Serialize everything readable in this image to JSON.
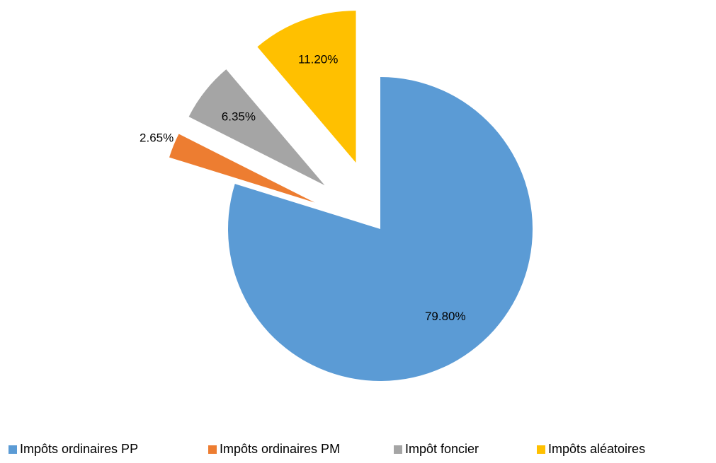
{
  "chart_data": {
    "type": "pie",
    "categories": [
      "Impôts ordinaires PP",
      "Impôts ordinaires PM",
      "Impôt foncier",
      "Impôts aléatoires"
    ],
    "values": [
      79.8,
      2.65,
      6.35,
      11.2
    ],
    "value_labels": [
      "79.80%",
      "2.65%",
      "6.35%",
      "11.20%"
    ],
    "colors": [
      "#5b9bd5",
      "#ed7d31",
      "#a5a5a5",
      "#ffc000"
    ],
    "legend": "bottom"
  }
}
